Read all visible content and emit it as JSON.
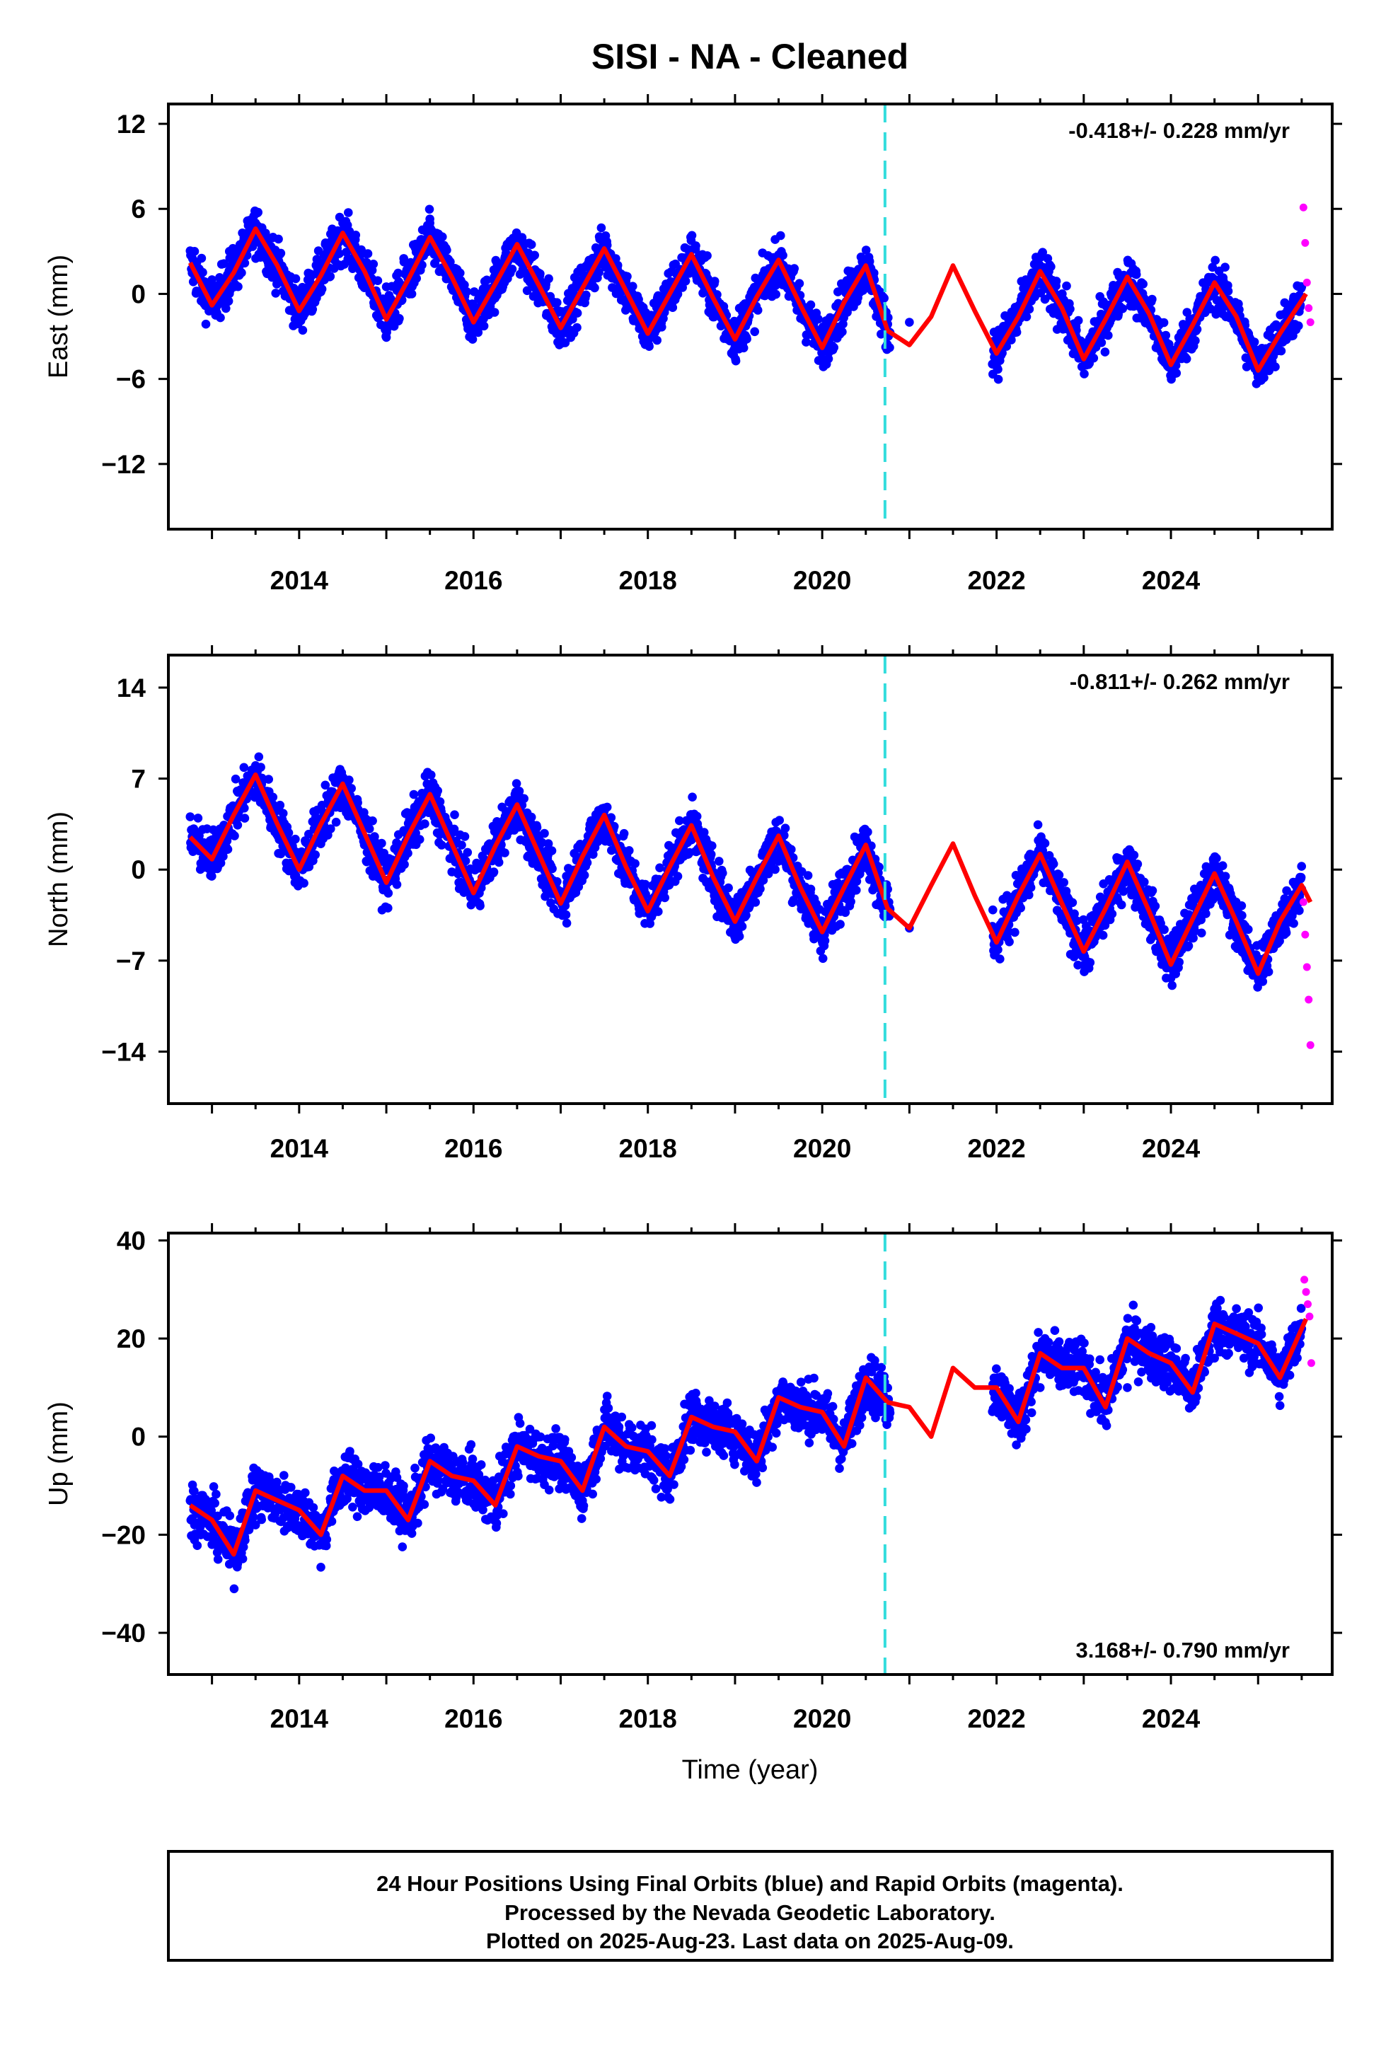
{
  "title": "SISI  - NA - Cleaned",
  "xlabel": "Time (year)",
  "footer": {
    "line1": "24 Hour Positions Using Final Orbits (blue) and Rapid Orbits (magenta).",
    "line2": "Processed by the Nevada Geodetic Laboratory.",
    "line3": "Plotted on 2025-Aug-23. Last data on 2025-Aug-09."
  },
  "colors": {
    "final_orbits": "#0000ff",
    "rapid_orbits": "#ff00ff",
    "model_fit": "#ff0000",
    "equipment_change": "#33dddd",
    "frame": "#000000"
  },
  "chart_data": [
    {
      "type": "scatter",
      "component": "East",
      "ylabel": "East (mm)",
      "rate_text": "-0.418+/- 0.228 mm/yr",
      "xlim": [
        2012.5,
        2025.85
      ],
      "ylim": [
        -16.6,
        13.4
      ],
      "xticks": [
        2014,
        2016,
        2018,
        2020,
        2022,
        2024
      ],
      "yticks": [
        12,
        6,
        0,
        -6,
        -12
      ],
      "grid": false,
      "equipment_change_year": 2020.72,
      "series": [
        {
          "name": "Final Orbits",
          "type": "scatter",
          "x": [
            2012.8,
            2013.0,
            2013.2,
            2013.5,
            2013.7,
            2013.9,
            2014.1,
            2014.3,
            2014.5,
            2014.8,
            2015.0,
            2015.2,
            2015.5,
            2015.7,
            2015.9,
            2016.1,
            2016.3,
            2016.5,
            2016.8,
            2017.0,
            2017.2,
            2017.5,
            2017.7,
            2017.9,
            2018.1,
            2018.3,
            2018.5,
            2018.8,
            2019.0,
            2019.2,
            2019.5,
            2019.7,
            2019.9,
            2020.1,
            2020.3,
            2020.5,
            2020.7,
            2021.0,
            2022.0,
            2022.3,
            2022.5,
            2022.8,
            2023.0,
            2023.3,
            2023.5,
            2023.8,
            2024.0,
            2024.3,
            2024.5,
            2024.8,
            2025.0,
            2025.3,
            2025.5
          ],
          "y": [
            3.0,
            1.0,
            3.0,
            5.0,
            4.0,
            0.5,
            1.0,
            3.5,
            5.0,
            2.0,
            0.5,
            2.5,
            5.0,
            2.5,
            -0.5,
            -0.5,
            2.0,
            3.5,
            0.5,
            -2.0,
            0.5,
            3.0,
            1.0,
            -2.0,
            -2.5,
            0.5,
            2.5,
            -0.5,
            -3.0,
            -1.0,
            2.0,
            0.0,
            -3.5,
            -3.0,
            -1.0,
            1.5,
            -1.0,
            -2.0,
            -3.5,
            -1.0,
            1.5,
            -1.0,
            -4.5,
            -2.0,
            1.0,
            -2.0,
            -5.0,
            -2.5,
            0.5,
            -2.5,
            -5.0,
            -3.0,
            0.5
          ]
        },
        {
          "name": "Rapid Orbits",
          "type": "scatter",
          "x": [
            2025.52,
            2025.54,
            2025.56,
            2025.58,
            2025.6
          ],
          "y": [
            6.1,
            3.6,
            0.8,
            -1.0,
            -2.0
          ]
        },
        {
          "name": "Model",
          "type": "line",
          "x": [
            2012.75,
            2013.0,
            2013.25,
            2013.5,
            2013.75,
            2014.0,
            2014.25,
            2014.5,
            2014.75,
            2015.0,
            2015.25,
            2015.5,
            2015.75,
            2016.0,
            2016.25,
            2016.5,
            2016.75,
            2017.0,
            2017.25,
            2017.5,
            2017.75,
            2018.0,
            2018.25,
            2018.5,
            2018.75,
            2019.0,
            2019.25,
            2019.5,
            2019.75,
            2020.0,
            2020.25,
            2020.5,
            2020.75,
            2021.0,
            2021.25,
            2021.5,
            2021.75,
            2022.0,
            2022.25,
            2022.5,
            2022.75,
            2023.0,
            2023.25,
            2023.5,
            2023.75,
            2024.0,
            2024.25,
            2024.5,
            2024.75,
            2025.0,
            2025.25,
            2025.55
          ],
          "y": [
            2.2,
            -0.8,
            1.5,
            4.6,
            2.0,
            -1.2,
            1.3,
            4.3,
            1.6,
            -1.8,
            1.0,
            4.0,
            1.2,
            -2.0,
            0.7,
            3.5,
            0.6,
            -2.4,
            0.4,
            3.2,
            0.2,
            -2.8,
            0.0,
            2.8,
            -0.3,
            -3.2,
            -0.2,
            2.4,
            -0.8,
            -3.8,
            -0.6,
            2.0,
            -2.6,
            -3.6,
            -1.6,
            2.0,
            -1.2,
            -4.2,
            -1.6,
            1.6,
            -1.0,
            -4.6,
            -1.8,
            1.2,
            -1.4,
            -5.0,
            -2.2,
            0.8,
            -1.6,
            -5.4,
            -2.8,
            0.0
          ]
        }
      ]
    },
    {
      "type": "scatter",
      "component": "North",
      "ylabel": "North (mm)",
      "rate_text": "-0.811+/- 0.262 mm/yr",
      "xlim": [
        2012.5,
        2025.85
      ],
      "ylim": [
        -18.0,
        16.5
      ],
      "xticks": [
        2014,
        2016,
        2018,
        2020,
        2022,
        2024
      ],
      "yticks": [
        14,
        7,
        0,
        -7,
        -14
      ],
      "grid": false,
      "equipment_change_year": 2020.72,
      "series": [
        {
          "name": "Final Orbits",
          "type": "scatter",
          "x": [
            2012.8,
            2013.0,
            2013.2,
            2013.5,
            2013.7,
            2013.9,
            2014.1,
            2014.3,
            2014.5,
            2014.8,
            2015.0,
            2015.2,
            2015.5,
            2015.7,
            2015.9,
            2016.1,
            2016.3,
            2016.5,
            2016.8,
            2017.0,
            2017.2,
            2017.5,
            2017.7,
            2017.9,
            2018.1,
            2018.3,
            2018.5,
            2018.8,
            2019.0,
            2019.2,
            2019.5,
            2019.7,
            2019.9,
            2020.1,
            2020.3,
            2020.5,
            2020.7,
            2021.0,
            2022.0,
            2022.3,
            2022.5,
            2022.8,
            2023.0,
            2023.3,
            2023.5,
            2023.8,
            2024.0,
            2024.3,
            2024.5,
            2024.8,
            2025.0,
            2025.3,
            2025.5
          ],
          "y": [
            3.0,
            0.5,
            4.0,
            8.0,
            5.0,
            0.5,
            2.0,
            6.5,
            6.5,
            2.0,
            -1.0,
            3.0,
            6.0,
            3.0,
            -1.5,
            -1.0,
            3.5,
            5.5,
            1.0,
            -2.5,
            0.0,
            4.5,
            1.0,
            -3.0,
            -2.5,
            1.0,
            3.5,
            -1.0,
            -4.5,
            -2.0,
            2.5,
            -0.5,
            -5.0,
            -4.5,
            -1.0,
            2.0,
            -2.0,
            -4.5,
            -5.5,
            -2.0,
            1.5,
            -2.0,
            -6.5,
            -3.0,
            0.5,
            -3.0,
            -7.5,
            -4.0,
            -0.5,
            -3.5,
            -8.0,
            -5.0,
            -1.5
          ]
        },
        {
          "name": "Rapid Orbits",
          "type": "scatter",
          "x": [
            2025.52,
            2025.54,
            2025.56,
            2025.58,
            2025.6
          ],
          "y": [
            -2.5,
            -5.0,
            -7.5,
            -10.0,
            -13.5
          ]
        },
        {
          "name": "Model",
          "type": "line",
          "x": [
            2012.75,
            2013.0,
            2013.25,
            2013.5,
            2013.75,
            2014.0,
            2014.25,
            2014.5,
            2014.75,
            2015.0,
            2015.25,
            2015.5,
            2015.75,
            2016.0,
            2016.25,
            2016.5,
            2016.75,
            2017.0,
            2017.25,
            2017.5,
            2017.75,
            2018.0,
            2018.25,
            2018.5,
            2018.75,
            2019.0,
            2019.25,
            2019.5,
            2019.75,
            2020.0,
            2020.25,
            2020.5,
            2020.75,
            2021.0,
            2021.25,
            2021.5,
            2021.75,
            2022.0,
            2022.25,
            2022.5,
            2022.75,
            2023.0,
            2023.25,
            2023.5,
            2023.75,
            2024.0,
            2024.25,
            2024.5,
            2024.75,
            2025.0,
            2025.25,
            2025.5,
            2025.6
          ],
          "y": [
            2.5,
            0.8,
            4.2,
            7.3,
            3.5,
            0.0,
            3.5,
            6.6,
            2.8,
            -1.0,
            2.6,
            5.8,
            2.0,
            -1.8,
            1.8,
            5.0,
            1.2,
            -2.6,
            1.0,
            4.2,
            0.2,
            -3.2,
            0.2,
            3.4,
            -0.6,
            -4.0,
            -0.6,
            2.6,
            -1.4,
            -4.8,
            -1.4,
            1.9,
            -3.0,
            -4.5,
            -1.2,
            2.0,
            -2.0,
            -5.6,
            -2.0,
            1.2,
            -2.6,
            -6.3,
            -3.0,
            0.6,
            -3.2,
            -7.3,
            -3.8,
            -0.3,
            -4.0,
            -8.0,
            -4.0,
            -1.2,
            -2.5
          ]
        }
      ]
    },
    {
      "type": "scatter",
      "component": "Up",
      "ylabel": "Up (mm)",
      "rate_text": "3.168+/- 0.790 mm/yr",
      "xlim": [
        2012.5,
        2025.85
      ],
      "ylim": [
        -48.5,
        41.5
      ],
      "xticks": [
        2014,
        2016,
        2018,
        2020,
        2022,
        2024
      ],
      "yticks": [
        40,
        20,
        0,
        -20,
        -40
      ],
      "grid": false,
      "equipment_change_year": 2020.72,
      "series": [
        {
          "name": "Final Orbits",
          "type": "scatter",
          "x": [
            2012.8,
            2013.0,
            2013.2,
            2013.5,
            2013.7,
            2013.9,
            2014.1,
            2014.3,
            2014.5,
            2014.8,
            2015.0,
            2015.2,
            2015.5,
            2015.7,
            2015.9,
            2016.1,
            2016.3,
            2016.5,
            2016.8,
            2017.0,
            2017.2,
            2017.5,
            2017.7,
            2017.9,
            2018.1,
            2018.3,
            2018.5,
            2018.8,
            2019.0,
            2019.2,
            2019.5,
            2019.7,
            2019.9,
            2020.1,
            2020.3,
            2020.5,
            2020.7,
            2022.0,
            2022.3,
            2022.5,
            2022.8,
            2023.0,
            2023.3,
            2023.5,
            2023.8,
            2024.0,
            2024.3,
            2024.5,
            2024.8,
            2025.0,
            2025.3,
            2025.5
          ],
          "y": [
            -18,
            -22,
            -26,
            -18,
            -12,
            -16,
            -14,
            -20,
            -10,
            -8,
            -12,
            -18,
            -8,
            -6,
            -12,
            -14,
            -4,
            -2,
            -6,
            -8,
            -10,
            0,
            4,
            -2,
            -6,
            -4,
            6,
            2,
            0,
            -4,
            4,
            8,
            4,
            6,
            4,
            10,
            12,
            8,
            4,
            10,
            16,
            12,
            8,
            10,
            18,
            14,
            12,
            16,
            22,
            20,
            16,
            22
          ]
        },
        {
          "name": "Rapid Orbits",
          "type": "scatter",
          "x": [
            2025.53,
            2025.55,
            2025.57,
            2025.59,
            2025.61
          ],
          "y": [
            32.0,
            29.5,
            27.0,
            24.5,
            15.0
          ]
        },
        {
          "name": "Model",
          "type": "line",
          "x": [
            2012.75,
            2013.0,
            2013.25,
            2013.5,
            2013.75,
            2014.0,
            2014.25,
            2014.5,
            2014.75,
            2015.0,
            2015.25,
            2015.5,
            2015.75,
            2016.0,
            2016.25,
            2016.5,
            2016.75,
            2017.0,
            2017.25,
            2017.5,
            2017.75,
            2018.0,
            2018.25,
            2018.5,
            2018.75,
            2019.0,
            2019.25,
            2019.5,
            2019.75,
            2020.0,
            2020.25,
            2020.5,
            2020.75,
            2021.0,
            2021.25,
            2021.5,
            2021.75,
            2022.0,
            2022.25,
            2022.5,
            2022.75,
            2023.0,
            2023.25,
            2023.5,
            2023.75,
            2024.0,
            2024.25,
            2024.5,
            2024.75,
            2025.0,
            2025.25,
            2025.55
          ],
          "y": [
            -14,
            -17,
            -24,
            -11,
            -13,
            -15,
            -20,
            -8,
            -11,
            -11,
            -17,
            -5,
            -8,
            -9,
            -14,
            -2,
            -4,
            -5,
            -11,
            2,
            -2,
            -3,
            -8,
            4,
            2,
            1,
            -5,
            8,
            6,
            5,
            -2,
            12,
            7,
            6,
            0,
            14,
            10,
            10,
            3,
            17,
            14,
            14,
            6,
            20,
            17,
            15,
            9,
            23,
            21,
            19,
            12,
            24
          ]
        }
      ]
    }
  ]
}
